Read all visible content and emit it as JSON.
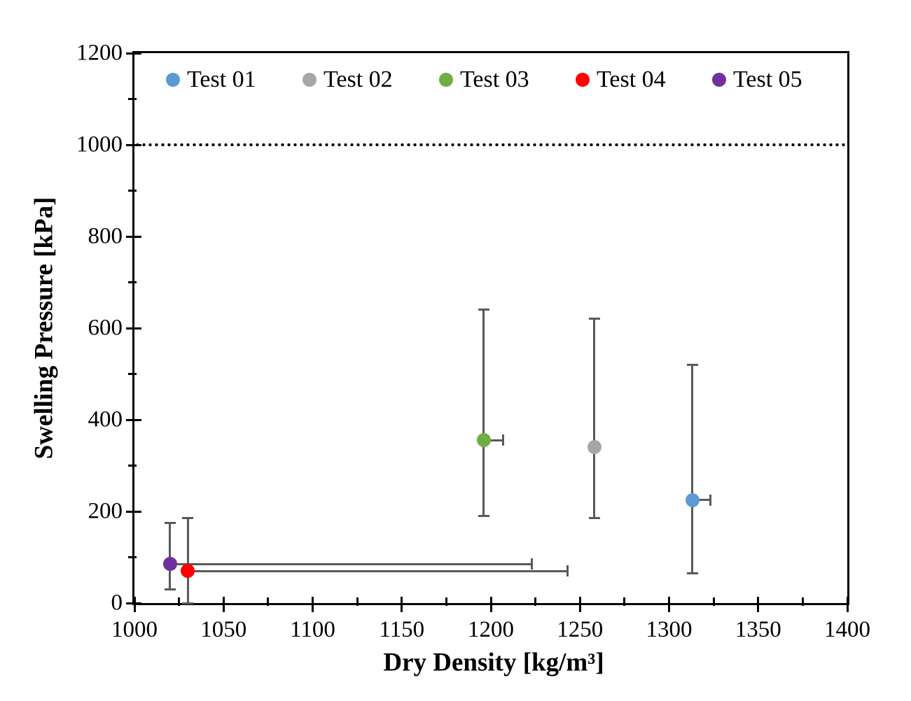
{
  "chart_data": {
    "type": "scatter",
    "title": "",
    "xlabel": "Dry Density [kg/m³]",
    "ylabel": "Swelling Pressure [kPa]",
    "xlim": [
      1000,
      1400
    ],
    "ylim": [
      0,
      1200
    ],
    "x_major_ticks": [
      1000,
      1050,
      1100,
      1150,
      1200,
      1250,
      1300,
      1350,
      1400
    ],
    "x_minor_step": 25,
    "y_major_ticks": [
      0,
      200,
      400,
      600,
      800,
      1000,
      1200
    ],
    "y_minor_step": 100,
    "grid": false,
    "legend_position": "top-inside",
    "error_bar_color": "#595959",
    "reference_line": {
      "y": 1000,
      "style": "dotted",
      "color": "#000000"
    },
    "series": [
      {
        "name": "Test 01",
        "color": "#5B9BD5",
        "x": 1313,
        "y": 225,
        "y_err_low": 65,
        "y_err_high": 520,
        "x_err_high": 1323
      },
      {
        "name": "Test 02",
        "color": "#A6A6A6",
        "x": 1258,
        "y": 340,
        "y_err_low": 185,
        "y_err_high": 620,
        "x_err_high": null
      },
      {
        "name": "Test 03",
        "color": "#70AD47",
        "x": 1196,
        "y": 355,
        "y_err_low": 190,
        "y_err_high": 640,
        "x_err_high": 1207
      },
      {
        "name": "Test 04",
        "color": "#FF0000",
        "x": 1030,
        "y": 70,
        "y_err_low": 0,
        "y_err_high": 185,
        "x_err_high": 1243
      },
      {
        "name": "Test 05",
        "color": "#7030A0",
        "x": 1020,
        "y": 85,
        "y_err_low": 30,
        "y_err_high": 175,
        "x_err_high": 1223
      }
    ]
  }
}
